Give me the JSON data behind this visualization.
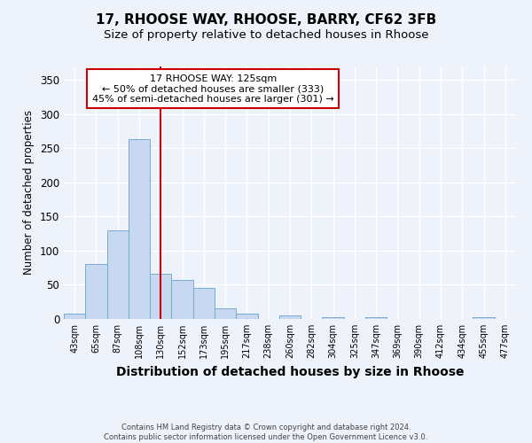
{
  "title1": "17, RHOOSE WAY, RHOOSE, BARRY, CF62 3FB",
  "title2": "Size of property relative to detached houses in Rhoose",
  "xlabel": "Distribution of detached houses by size in Rhoose",
  "ylabel": "Number of detached properties",
  "categories": [
    "43sqm",
    "65sqm",
    "87sqm",
    "108sqm",
    "130sqm",
    "152sqm",
    "173sqm",
    "195sqm",
    "217sqm",
    "238sqm",
    "260sqm",
    "282sqm",
    "304sqm",
    "325sqm",
    "347sqm",
    "369sqm",
    "390sqm",
    "412sqm",
    "434sqm",
    "455sqm",
    "477sqm"
  ],
  "values": [
    8,
    81,
    130,
    263,
    66,
    57,
    45,
    15,
    8,
    0,
    5,
    0,
    3,
    0,
    3,
    0,
    0,
    0,
    0,
    3,
    0
  ],
  "bar_color": "#c8d8f0",
  "bar_edge_color": "#7aaad0",
  "red_line_x": 4,
  "annotation_line1": "17 RHOOSE WAY: 125sqm",
  "annotation_line2": "← 50% of detached houses are smaller (333)",
  "annotation_line3": "45% of semi-detached houses are larger (301) →",
  "ylim": [
    0,
    370
  ],
  "yticks": [
    0,
    50,
    100,
    150,
    200,
    250,
    300,
    350
  ],
  "footer1": "Contains HM Land Registry data © Crown copyright and database right 2024.",
  "footer2": "Contains public sector information licensed under the Open Government Licence v3.0.",
  "bg_color": "#eef2fb",
  "grid_color": "#ffffff",
  "title1_fontsize": 11,
  "title2_fontsize": 9.5,
  "xlabel_fontsize": 10,
  "ylabel_fontsize": 8.5,
  "annotation_box_color": "#ffffff",
  "annotation_box_edge": "#cc0000",
  "red_line_color": "#cc0000"
}
